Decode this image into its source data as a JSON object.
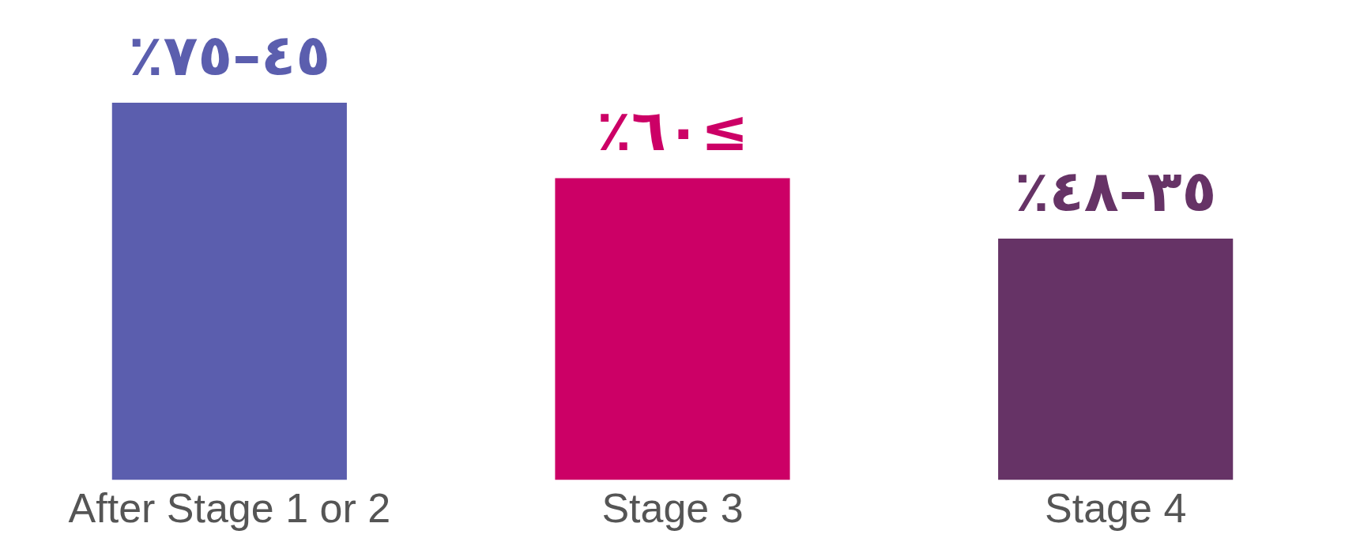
{
  "chart_data": {
    "type": "bar",
    "tick_labels": "x",
    "categories": [
      "After Stage 1 or 2",
      "Stage 3",
      "Stage 4"
    ],
    "values": [
      75,
      60,
      48
    ],
    "colors": [
      "#5b5eae",
      "#cc0066",
      "#663366"
    ],
    "value_labels": [
      "٤٥–٧٥٪",
      "≥٦٠٪",
      "٣٥–٤٨٪"
    ],
    "grid": false,
    "legend": false
  }
}
